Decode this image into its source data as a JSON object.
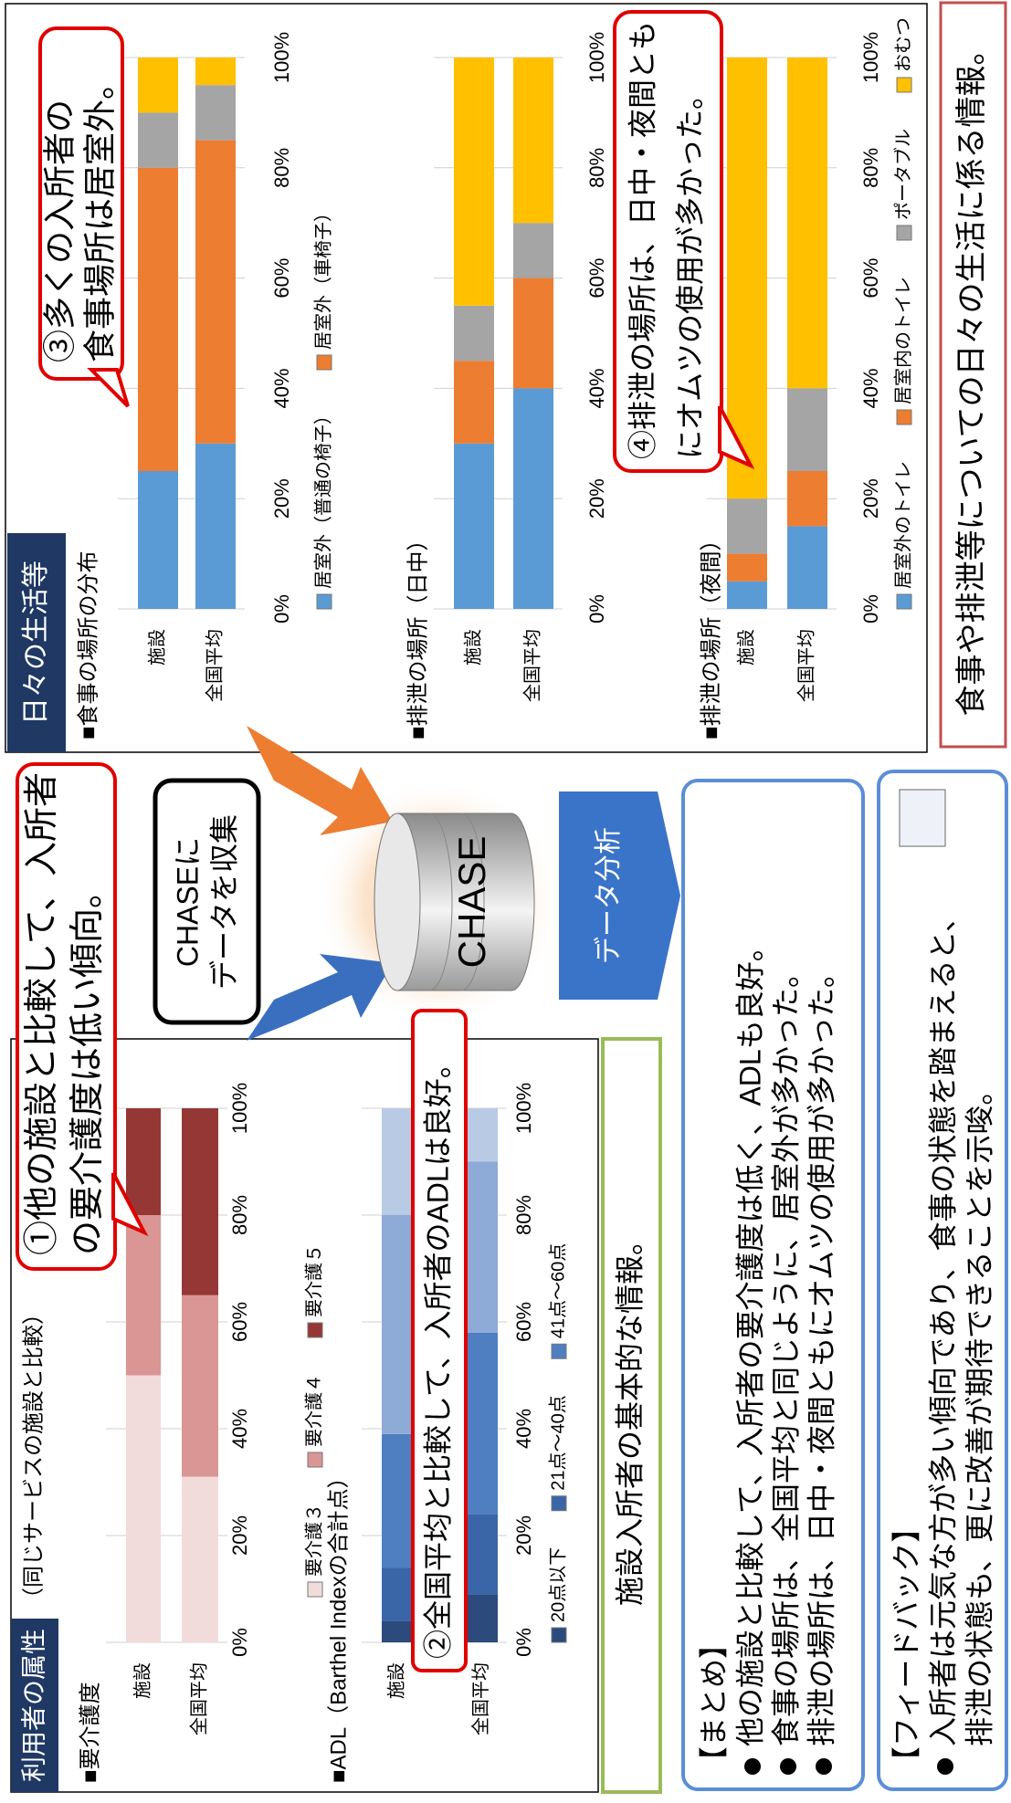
{
  "left_panel": {
    "title": "利用者の属性",
    "subtitle": "（同じサービスの施設と比較）"
  },
  "right_panel": {
    "title": "日々の生活等"
  },
  "callouts": [
    {
      "lines": [
        "①他の施設と比較して、入所者",
        "の要介護度は低い傾向。"
      ]
    },
    {
      "lines": [
        "②全国平均と比較して、入所者のADLは良好。"
      ]
    },
    {
      "lines": [
        "③多くの入所者の",
        "食事場所は居室外。"
      ]
    },
    {
      "lines": [
        "④排泄の場所は、日中・夜間とも",
        "にオムツの使用が多かった。"
      ]
    }
  ],
  "collect_box": {
    "lines": [
      "CHASEに",
      "データを収集"
    ]
  },
  "database_label": "CHASE",
  "analysis_label": "データ分析",
  "basic_info_note": "施設入所者の基本的な情報。",
  "daily_life_note": "食事や排泄等についての日々の生活に係る情報。",
  "summary": {
    "title": "【まとめ】",
    "items": [
      "他の施設と比較して、入所者の要介護度は低く、ADLも良好。",
      "食事の場所は、全国平均と同じように、居室外が多かった。",
      "排泄の場所は、日中・夜間ともにオムツの使用が多かった。"
    ]
  },
  "feedback": {
    "title": "【フィードバック】",
    "lines": [
      "入所者は元気な方が多い傾向であり、食事の状態を踏まえると、",
      "排泄の状態も、更に改善が期待できることを示唆。"
    ]
  },
  "chart_data": [
    {
      "type": "bar",
      "title": "■要介護度",
      "categories": [
        "施設",
        "全国平均"
      ],
      "series": [
        {
          "name": "要介護３",
          "color": "#f2dcdb",
          "values": [
            50,
            31
          ]
        },
        {
          "name": "要介護４",
          "color": "#d99694",
          "values": [
            30,
            34
          ]
        },
        {
          "name": "要介護５",
          "color": "#953735",
          "values": [
            20,
            35
          ]
        }
      ],
      "xlim": [
        0,
        100
      ],
      "xticks": [
        {
          "value": 0,
          "label": "0%"
        },
        {
          "value": 20,
          "label": "20%"
        },
        {
          "value": 40,
          "label": "40%"
        },
        {
          "value": 60,
          "label": "60%"
        },
        {
          "value": 80,
          "label": "80%"
        },
        {
          "value": 100,
          "label": "100%"
        }
      ],
      "grid": true
    },
    {
      "type": "bar",
      "title": "■ADL（Barthel Indexの合計点）",
      "categories": [
        "施設",
        "全国平均"
      ],
      "series": [
        {
          "name": "20点以下",
          "color": "#2c4a7c",
          "values": [
            4,
            9
          ]
        },
        {
          "name": "21点～40点",
          "color": "#3a66a8",
          "values": [
            10,
            15
          ]
        },
        {
          "name": "41点～60点",
          "color": "#4f7fc0",
          "values": [
            25,
            34
          ]
        },
        {
          "color": "#8eaad6",
          "values": [
            41,
            32
          ]
        },
        {
          "color": "#b9cae5",
          "values": [
            20,
            10
          ]
        }
      ],
      "xlim": [
        0,
        100
      ],
      "xticks": [
        {
          "value": 0,
          "label": "0%"
        },
        {
          "value": 20,
          "label": "20%"
        },
        {
          "value": 40,
          "label": "40%"
        },
        {
          "value": 60,
          "label": "60%"
        },
        {
          "value": 80,
          "label": "80%"
        },
        {
          "value": 100,
          "label": "100%"
        }
      ],
      "grid": true
    },
    {
      "type": "bar",
      "title": "■食事の場所の分布",
      "categories": [
        "施設",
        "全国平均"
      ],
      "series": [
        {
          "name": "居室外（普通の椅子）",
          "color": "#5b9bd5",
          "values": [
            25,
            30
          ]
        },
        {
          "name": "居室外（車椅子）",
          "color": "#ed7d31",
          "values": [
            55,
            55
          ]
        },
        {
          "color": "#a5a5a5",
          "values": [
            10,
            10
          ]
        },
        {
          "color": "#ffc000",
          "values": [
            10,
            5
          ]
        }
      ],
      "xlim": [
        0,
        100
      ],
      "xticks": [
        {
          "value": 0,
          "label": "0%"
        },
        {
          "value": 20,
          "label": "20%"
        },
        {
          "value": 40,
          "label": "40%"
        },
        {
          "value": 60,
          "label": "60%"
        },
        {
          "value": 80,
          "label": "80%"
        },
        {
          "value": 100,
          "label": "100%"
        }
      ],
      "grid": true
    },
    {
      "type": "bar",
      "title": "■排泄の場所（日中）",
      "categories": [
        "施設",
        "全国平均"
      ],
      "series": [
        {
          "color": "#5b9bd5",
          "values": [
            30,
            40
          ]
        },
        {
          "color": "#ed7d31",
          "values": [
            15,
            20
          ]
        },
        {
          "color": "#a5a5a5",
          "values": [
            10,
            10
          ]
        },
        {
          "color": "#ffc000",
          "values": [
            45,
            30
          ]
        }
      ],
      "xlim": [
        0,
        100
      ],
      "xticks": [
        {
          "value": 0,
          "label": "0%"
        },
        {
          "value": 20,
          "label": "20%"
        },
        {
          "value": 40,
          "label": "40%"
        },
        {
          "value": 60,
          "label": "60%"
        },
        {
          "value": 80,
          "label": "80%"
        },
        {
          "value": 100,
          "label": "100%"
        }
      ],
      "grid": true
    },
    {
      "type": "bar",
      "title": "■排泄の場所（夜間）",
      "categories": [
        "施設",
        "全国平均"
      ],
      "series": [
        {
          "name": "居室外のトイレ",
          "color": "#5b9bd5",
          "values": [
            5,
            15
          ]
        },
        {
          "name": "居室内のトイレ",
          "color": "#ed7d31",
          "values": [
            5,
            10
          ]
        },
        {
          "name": "ポータブル",
          "color": "#a5a5a5",
          "values": [
            10,
            15
          ]
        },
        {
          "name": "おむつ",
          "color": "#ffc000",
          "values": [
            80,
            60
          ]
        }
      ],
      "xlim": [
        0,
        100
      ],
      "xticks": [
        {
          "value": 0,
          "label": "0%"
        },
        {
          "value": 20,
          "label": "20%"
        },
        {
          "value": 40,
          "label": "40%"
        },
        {
          "value": 60,
          "label": "60%"
        },
        {
          "value": 80,
          "label": "80%"
        },
        {
          "value": 100,
          "label": "100%"
        }
      ],
      "grid": true
    }
  ]
}
